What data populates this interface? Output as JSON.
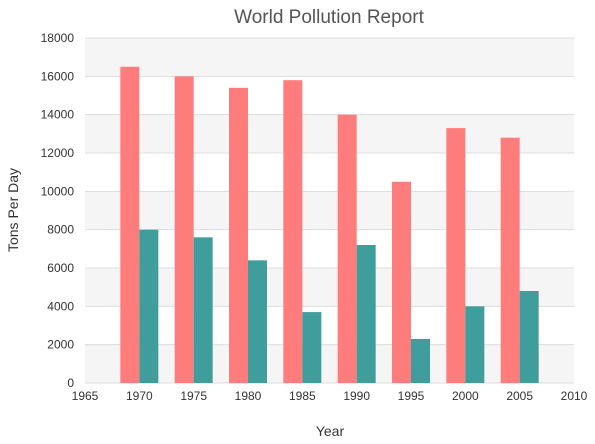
{
  "chart_data": {
    "type": "bar",
    "title": "World Pollution Report",
    "xlabel": "Year",
    "ylabel": "Tons Per Day",
    "xlim": [
      1965,
      2010
    ],
    "ylim": [
      0,
      18000
    ],
    "x_ticks": [
      1965,
      1970,
      1975,
      1980,
      1985,
      1990,
      1995,
      2000,
      2005,
      2010
    ],
    "y_ticks": [
      0,
      2000,
      4000,
      6000,
      8000,
      10000,
      12000,
      14000,
      16000,
      18000
    ],
    "categories": [
      1970,
      1975,
      1980,
      1985,
      1990,
      1995,
      2000,
      2005
    ],
    "series": [
      {
        "color": "#FF7C7C",
        "values": [
          16500,
          16000,
          15400,
          15800,
          14000,
          10500,
          13300,
          12800
        ]
      },
      {
        "color": "#3F9D9C",
        "values": [
          8000,
          7600,
          6400,
          3700,
          7200,
          2300,
          4000,
          4800
        ]
      }
    ],
    "grid": true,
    "legend": "none",
    "band_color": "#F5F5F5",
    "grid_color": "#DDDDDD"
  }
}
